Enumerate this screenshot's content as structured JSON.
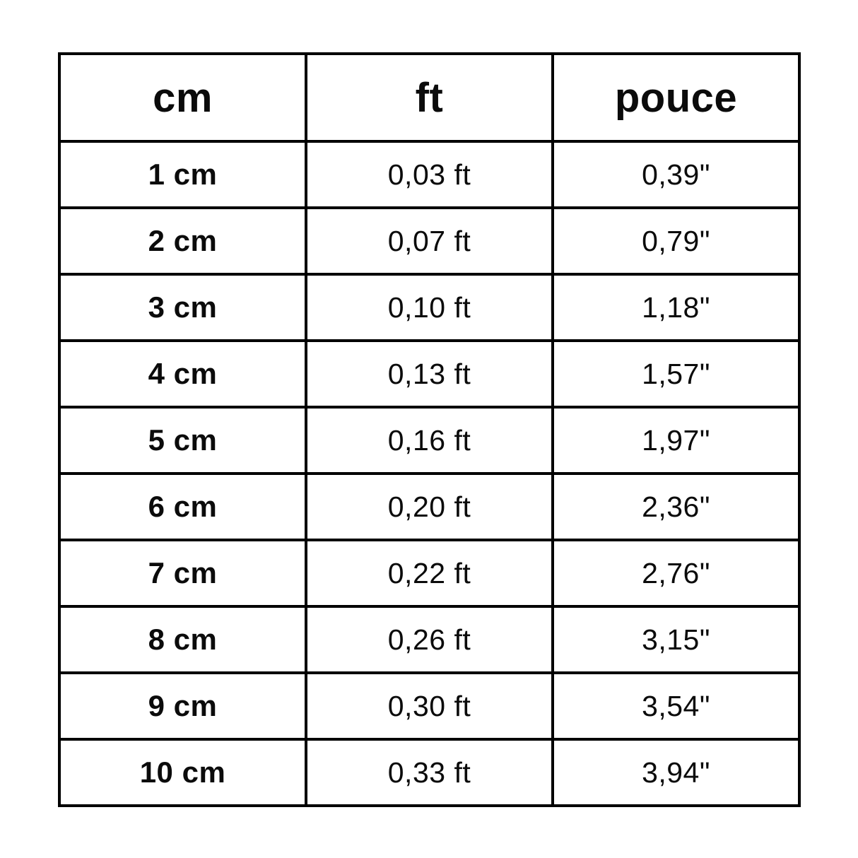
{
  "colors": {
    "background": "#ffffff",
    "border": "#000000",
    "text": "#0b0b0b"
  },
  "table": {
    "headers": {
      "cm": "cm",
      "ft": "ft",
      "pouce": "pouce"
    },
    "rows": [
      {
        "cm": "1 cm",
        "ft": "0,03 ft",
        "pouce": "0,39\""
      },
      {
        "cm": "2 cm",
        "ft": "0,07 ft",
        "pouce": "0,79\""
      },
      {
        "cm": "3 cm",
        "ft": "0,10 ft",
        "pouce": "1,18\""
      },
      {
        "cm": "4 cm",
        "ft": "0,13 ft",
        "pouce": "1,57\""
      },
      {
        "cm": "5 cm",
        "ft": "0,16 ft",
        "pouce": "1,97\""
      },
      {
        "cm": "6 cm",
        "ft": "0,20 ft",
        "pouce": "2,36\""
      },
      {
        "cm": "7 cm",
        "ft": "0,22 ft",
        "pouce": "2,76\""
      },
      {
        "cm": "8 cm",
        "ft": "0,26 ft",
        "pouce": "3,15\""
      },
      {
        "cm": "9 cm",
        "ft": "0,30 ft",
        "pouce": "3,54\""
      },
      {
        "cm": "10 cm",
        "ft": "0,33 ft",
        "pouce": "3,94\""
      }
    ]
  },
  "chart_data": {
    "type": "table",
    "columns": [
      "cm",
      "ft",
      "pouce"
    ],
    "rows": [
      [
        "1 cm",
        "0,03 ft",
        "0,39\""
      ],
      [
        "2 cm",
        "0,07 ft",
        "0,79\""
      ],
      [
        "3 cm",
        "0,10 ft",
        "1,18\""
      ],
      [
        "4 cm",
        "0,13 ft",
        "1,57\""
      ],
      [
        "5 cm",
        "0,16 ft",
        "1,97\""
      ],
      [
        "6 cm",
        "0,20 ft",
        "2,36\""
      ],
      [
        "7 cm",
        "0,22 ft",
        "2,76\""
      ],
      [
        "8 cm",
        "0,26 ft",
        "3,15\""
      ],
      [
        "9 cm",
        "0,30 ft",
        "3,54\""
      ],
      [
        "10 cm",
        "0,33 ft",
        "3,94\""
      ]
    ],
    "values_numeric": {
      "cm": [
        1,
        2,
        3,
        4,
        5,
        6,
        7,
        8,
        9,
        10
      ],
      "ft": [
        0.03,
        0.07,
        0.1,
        0.13,
        0.16,
        0.2,
        0.22,
        0.26,
        0.3,
        0.33
      ],
      "pouce": [
        0.39,
        0.79,
        1.18,
        1.57,
        1.97,
        2.36,
        2.76,
        3.15,
        3.54,
        3.94
      ]
    },
    "legend_position": "none",
    "grid": "full-borders"
  }
}
